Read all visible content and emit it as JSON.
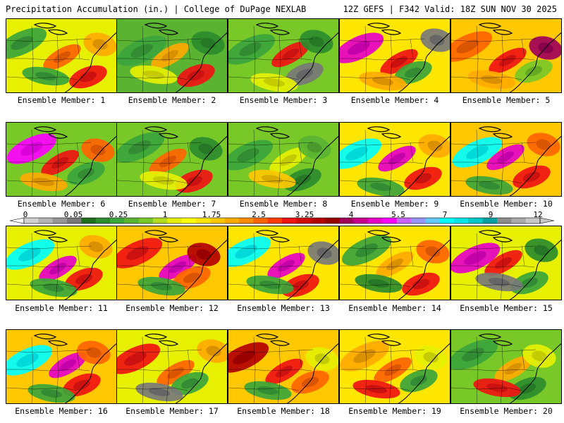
{
  "header": {
    "left": "Precipitation Accumulation (in.) | College of DuPage NEXLAB",
    "right": "12Z GEFS | F342 Valid: 18Z SUN NOV 30 2025"
  },
  "colorbar": {
    "labels": [
      "0",
      "0.05",
      "0.25",
      "1",
      "1.75",
      "2.5",
      "3.25",
      "4",
      "5.5",
      "7",
      "9",
      "12"
    ],
    "colors": [
      "#d2d2d2",
      "#b4b4b4",
      "#969696",
      "#787878",
      "#1e6e1e",
      "#2d8c2d",
      "#3ca53c",
      "#5ab432",
      "#78c828",
      "#b4dc1e",
      "#e6f000",
      "#ffff00",
      "#ffe600",
      "#ffc800",
      "#ffaa00",
      "#ff8c00",
      "#ff6400",
      "#ff3c00",
      "#f01414",
      "#d20a0a",
      "#b40000",
      "#960000",
      "#a0005a",
      "#c8008c",
      "#e600c8",
      "#ff00ff",
      "#c864ff",
      "#9696ff",
      "#64c8ff",
      "#00ffff",
      "#00e6e6",
      "#00c8c8",
      "#00a0a0",
      "#8c8c8c",
      "#aaaaaa",
      "#c8c8c8"
    ]
  },
  "members": [
    {
      "caption": "Ensemble Member: 1",
      "bg": "#e6f000",
      "blobs": [
        "#3ca53c",
        "#ff6400",
        "#f01414",
        "#3ca53c",
        "#ffaa00"
      ]
    },
    {
      "caption": "Ensemble Member: 2",
      "bg": "#5ab432",
      "blobs": [
        "#3ca53c",
        "#ffaa00",
        "#f01414",
        "#e6f000",
        "#2d8c2d"
      ]
    },
    {
      "caption": "Ensemble Member: 3",
      "bg": "#78c828",
      "blobs": [
        "#3ca53c",
        "#f01414",
        "#787878",
        "#e6f000",
        "#2d8c2d"
      ]
    },
    {
      "caption": "Ensemble Member: 4",
      "bg": "#ffe600",
      "blobs": [
        "#e600c8",
        "#f01414",
        "#3ca53c",
        "#ffaa00",
        "#787878"
      ]
    },
    {
      "caption": "Ensemble Member: 5",
      "bg": "#ffc800",
      "blobs": [
        "#ff6400",
        "#f01414",
        "#78c828",
        "#ffaa00",
        "#a0005a"
      ]
    },
    {
      "caption": "Ensemble Member: 6",
      "bg": "#78c828",
      "blobs": [
        "#ff00ff",
        "#f01414",
        "#3ca53c",
        "#ffaa00",
        "#ff6400"
      ]
    },
    {
      "caption": "Ensemble Member: 7",
      "bg": "#78c828",
      "blobs": [
        "#3ca53c",
        "#ff6400",
        "#f01414",
        "#e6f000",
        "#2d8c2d"
      ]
    },
    {
      "caption": "Ensemble Member: 8",
      "bg": "#78c828",
      "blobs": [
        "#3ca53c",
        "#e6f000",
        "#2d8c2d",
        "#ffc800",
        "#5ab432"
      ]
    },
    {
      "caption": "Ensemble Member: 9",
      "bg": "#ffe600",
      "blobs": [
        "#00ffff",
        "#e600c8",
        "#f01414",
        "#3ca53c",
        "#ffaa00"
      ]
    },
    {
      "caption": "Ensemble Member: 10",
      "bg": "#ffc800",
      "blobs": [
        "#00ffff",
        "#e600c8",
        "#f01414",
        "#3ca53c",
        "#ff6400"
      ]
    },
    {
      "caption": "Ensemble Member: 11",
      "bg": "#e6f000",
      "blobs": [
        "#00ffff",
        "#e600c8",
        "#f01414",
        "#3ca53c",
        "#ffaa00"
      ]
    },
    {
      "caption": "Ensemble Member: 12",
      "bg": "#ffc800",
      "blobs": [
        "#f01414",
        "#e600c8",
        "#ff6400",
        "#3ca53c",
        "#b40000"
      ]
    },
    {
      "caption": "Ensemble Member: 13",
      "bg": "#ffe600",
      "blobs": [
        "#00ffff",
        "#e600c8",
        "#f01414",
        "#3ca53c",
        "#787878"
      ]
    },
    {
      "caption": "Ensemble Member: 14",
      "bg": "#ffe600",
      "blobs": [
        "#3ca53c",
        "#ffaa00",
        "#f01414",
        "#2d8c2d",
        "#ff6400"
      ]
    },
    {
      "caption": "Ensemble Member: 15",
      "bg": "#e6f000",
      "blobs": [
        "#e600c8",
        "#f01414",
        "#3ca53c",
        "#787878",
        "#2d8c2d"
      ]
    },
    {
      "caption": "Ensemble Member: 16",
      "bg": "#ffc800",
      "blobs": [
        "#00ffff",
        "#e600c8",
        "#f01414",
        "#3ca53c",
        "#ff6400"
      ]
    },
    {
      "caption": "Ensemble Member: 17",
      "bg": "#e6f000",
      "blobs": [
        "#f01414",
        "#ff6400",
        "#3ca53c",
        "#787878",
        "#ffaa00"
      ]
    },
    {
      "caption": "Ensemble Member: 18",
      "bg": "#ffc800",
      "blobs": [
        "#b40000",
        "#f01414",
        "#ff6400",
        "#3ca53c",
        "#e6f000"
      ]
    },
    {
      "caption": "Ensemble Member: 19",
      "bg": "#ffe600",
      "blobs": [
        "#ffaa00",
        "#ff6400",
        "#3ca53c",
        "#f01414",
        "#e6f000"
      ]
    },
    {
      "caption": "Ensemble Member: 20",
      "bg": "#78c828",
      "blobs": [
        "#3ca53c",
        "#ffaa00",
        "#2d8c2d",
        "#f01414",
        "#e6f000"
      ]
    }
  ]
}
